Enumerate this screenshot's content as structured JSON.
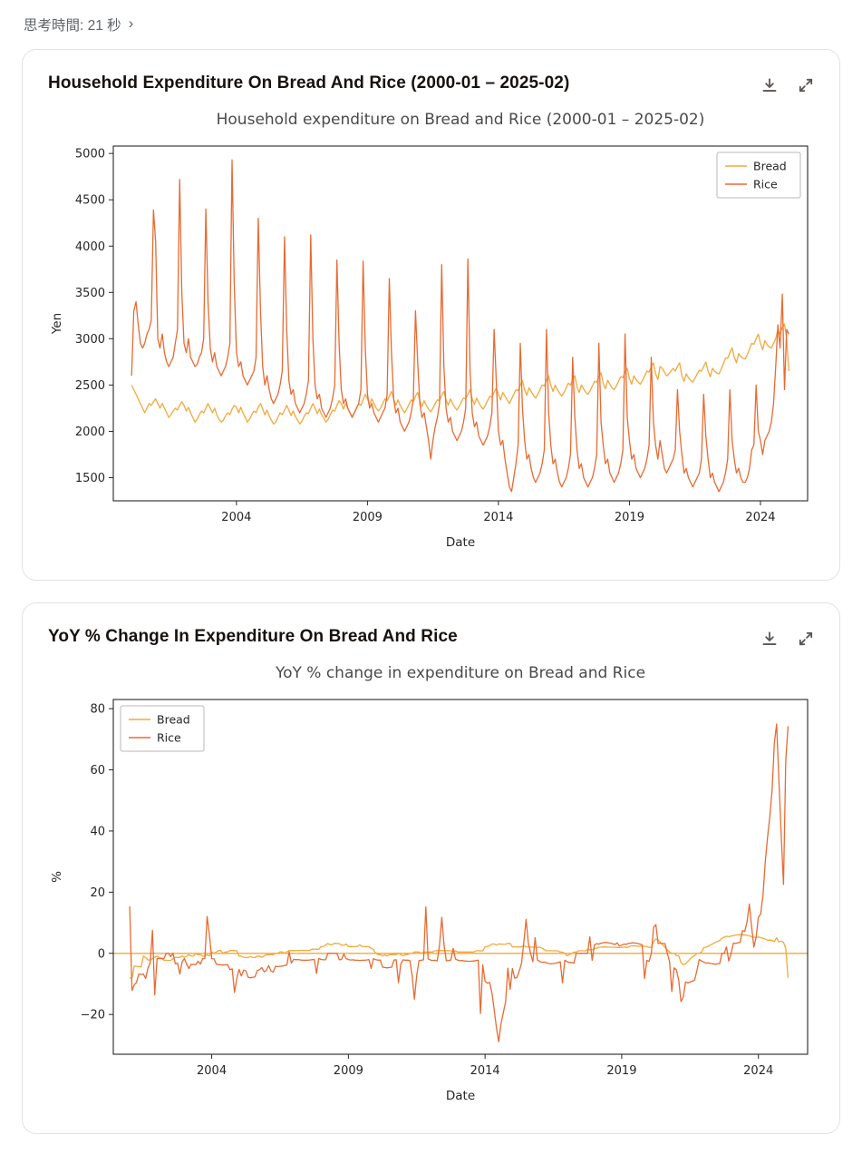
{
  "header": {
    "thinking_label": "思考時間: 21 秒",
    "chevron": "›"
  },
  "cards": [
    {
      "title": "Household Expenditure On Bread And Rice (2000-01 – 2025-02)",
      "actions": {
        "download": "download",
        "expand": "expand"
      }
    },
    {
      "title": "YoY % Change In Expenditure On Bread And Rice",
      "actions": {
        "download": "download",
        "expand": "expand"
      }
    }
  ],
  "colors": {
    "bread": "#F2A93B",
    "rice": "#E86A32",
    "plot_title": "#4a4a4a",
    "axis": "#262626"
  },
  "chart_data": [
    {
      "type": "line",
      "title": "Household expenditure on Bread and Rice (2000-01 – 2025-02)",
      "xlabel": "Date",
      "ylabel": "Yen",
      "x_start_year": 2000,
      "x_start_month": 1,
      "xlim": [
        1999.3,
        2025.8
      ],
      "ylim": [
        1250,
        5080
      ],
      "y_ticks": [
        1500,
        2000,
        2500,
        3000,
        3500,
        4000,
        4500,
        5000
      ],
      "x_ticks": [
        2004,
        2009,
        2014,
        2019,
        2024
      ],
      "grid": false,
      "legend": {
        "position": "upper right",
        "entries": [
          "Bread",
          "Rice"
        ]
      },
      "series": [
        {
          "name": "Bread",
          "color": "#F2A93B",
          "values": [
            2500,
            2450,
            2400,
            2350,
            2300,
            2250,
            2200,
            2250,
            2300,
            2280,
            2320,
            2350,
            2300,
            2250,
            2300,
            2250,
            2200,
            2150,
            2180,
            2220,
            2250,
            2230,
            2280,
            2320,
            2280,
            2220,
            2260,
            2200,
            2150,
            2100,
            2130,
            2180,
            2220,
            2200,
            2250,
            2300,
            2250,
            2200,
            2250,
            2180,
            2130,
            2100,
            2120,
            2170,
            2200,
            2180,
            2240,
            2280,
            2260,
            2200,
            2260,
            2200,
            2150,
            2100,
            2130,
            2180,
            2220,
            2200,
            2260,
            2300,
            2240,
            2180,
            2230,
            2170,
            2120,
            2080,
            2100,
            2150,
            2200,
            2180,
            2230,
            2280,
            2230,
            2170,
            2220,
            2160,
            2120,
            2080,
            2110,
            2160,
            2200,
            2190,
            2250,
            2300,
            2250,
            2190,
            2240,
            2180,
            2140,
            2100,
            2130,
            2180,
            2230,
            2220,
            2280,
            2330,
            2300,
            2240,
            2300,
            2250,
            2200,
            2160,
            2200,
            2250,
            2300,
            2280,
            2340,
            2400,
            2350,
            2290,
            2350,
            2300,
            2250,
            2220,
            2250,
            2300,
            2350,
            2330,
            2380,
            2430,
            2350,
            2280,
            2340,
            2280,
            2240,
            2200,
            2240,
            2290,
            2340,
            2320,
            2380,
            2420,
            2330,
            2270,
            2330,
            2280,
            2240,
            2210,
            2250,
            2300,
            2340,
            2330,
            2390,
            2430,
            2340,
            2280,
            2350,
            2300,
            2260,
            2230,
            2270,
            2320,
            2360,
            2350,
            2400,
            2450,
            2350,
            2290,
            2360,
            2310,
            2270,
            2240,
            2280,
            2330,
            2380,
            2370,
            2420,
            2470,
            2400,
            2340,
            2420,
            2380,
            2340,
            2300,
            2350,
            2400,
            2450,
            2440,
            2500,
            2550,
            2450,
            2390,
            2470,
            2430,
            2390,
            2360,
            2400,
            2450,
            2500,
            2490,
            2550,
            2600,
            2500,
            2430,
            2500,
            2450,
            2410,
            2380,
            2420,
            2470,
            2520,
            2500,
            2560,
            2600,
            2480,
            2420,
            2500,
            2460,
            2420,
            2400,
            2440,
            2490,
            2540,
            2530,
            2590,
            2630,
            2520,
            2460,
            2550,
            2510,
            2470,
            2450,
            2490,
            2540,
            2590,
            2580,
            2640,
            2680,
            2570,
            2510,
            2600,
            2560,
            2530,
            2510,
            2550,
            2600,
            2650,
            2640,
            2700,
            2740,
            2620,
            2560,
            2700,
            2680,
            2640,
            2600,
            2620,
            2650,
            2680,
            2650,
            2700,
            2740,
            2600,
            2540,
            2620,
            2580,
            2550,
            2530,
            2570,
            2620,
            2660,
            2650,
            2700,
            2750,
            2650,
            2590,
            2680,
            2650,
            2630,
            2620,
            2670,
            2730,
            2790,
            2790,
            2850,
            2900,
            2800,
            2740,
            2840,
            2810,
            2790,
            2780,
            2830,
            2890,
            2950,
            2940,
            3000,
            3050,
            2950,
            2880,
            2980,
            2940,
            2910,
            2900,
            2950,
            3000,
            3100,
            3050,
            3120,
            3160,
            3000,
            2650
          ]
        },
        {
          "name": "Rice",
          "color": "#E86A32",
          "values": [
            2600,
            3300,
            3400,
            3150,
            2950,
            2900,
            2950,
            3050,
            3100,
            3200,
            4390,
            4050,
            3000,
            2900,
            3050,
            2850,
            2750,
            2700,
            2750,
            2800,
            2950,
            3100,
            4720,
            3500,
            2950,
            2850,
            3000,
            2800,
            2750,
            2700,
            2720,
            2800,
            2850,
            3000,
            4400,
            3400,
            2900,
            2750,
            2850,
            2700,
            2650,
            2600,
            2650,
            2700,
            2800,
            2950,
            4930,
            3600,
            2850,
            2700,
            2750,
            2600,
            2550,
            2500,
            2550,
            2600,
            2650,
            2800,
            4300,
            3300,
            2700,
            2500,
            2600,
            2450,
            2350,
            2300,
            2350,
            2400,
            2500,
            2650,
            4100,
            3100,
            2550,
            2400,
            2450,
            2300,
            2250,
            2200,
            2250,
            2300,
            2400,
            2550,
            4120,
            3000,
            2500,
            2350,
            2400,
            2250,
            2200,
            2150,
            2200,
            2250,
            2350,
            2500,
            3850,
            2950,
            2450,
            2300,
            2350,
            2250,
            2200,
            2150,
            2200,
            2250,
            2300,
            2450,
            3840,
            2900,
            2400,
            2250,
            2300,
            2200,
            2150,
            2100,
            2150,
            2200,
            2250,
            2400,
            3650,
            2850,
            2350,
            2200,
            2250,
            2100,
            2050,
            2000,
            2050,
            2100,
            2200,
            2350,
            3300,
            2750,
            2300,
            2150,
            2200,
            2050,
            1900,
            1700,
            1900,
            2050,
            2150,
            2300,
            3800,
            2700,
            2250,
            2100,
            2150,
            2000,
            1950,
            1900,
            1950,
            2000,
            2100,
            2250,
            3860,
            2650,
            2200,
            2050,
            2100,
            1950,
            1900,
            1850,
            1900,
            1950,
            2050,
            2200,
            3100,
            2550,
            2000,
            1850,
            1900,
            1700,
            1550,
            1400,
            1350,
            1500,
            1650,
            1850,
            2950,
            2250,
            1900,
            1700,
            1750,
            1600,
            1500,
            1450,
            1500,
            1550,
            1650,
            1800,
            3100,
            2200,
            1850,
            1650,
            1700,
            1550,
            1450,
            1400,
            1450,
            1500,
            1600,
            1750,
            2800,
            2150,
            1800,
            1600,
            1650,
            1500,
            1450,
            1400,
            1450,
            1500,
            1600,
            1750,
            2950,
            2100,
            1850,
            1650,
            1700,
            1550,
            1500,
            1450,
            1500,
            1550,
            1650,
            1800,
            3050,
            2150,
            1900,
            1700,
            1750,
            1600,
            1550,
            1500,
            1550,
            1600,
            1700,
            1850,
            2800,
            2100,
            1850,
            1700,
            1900,
            1750,
            1600,
            1550,
            1600,
            1650,
            1700,
            1800,
            2450,
            2000,
            1750,
            1550,
            1600,
            1500,
            1450,
            1400,
            1450,
            1500,
            1550,
            1700,
            2400,
            1950,
            1700,
            1500,
            1550,
            1450,
            1400,
            1350,
            1400,
            1450,
            1550,
            1700,
            2450,
            1900,
            1700,
            1550,
            1600,
            1500,
            1450,
            1450,
            1500,
            1600,
            1800,
            1850,
            2500,
            2000,
            1900,
            1750,
            1900,
            1950,
            2000,
            2100,
            2300,
            2700,
            3150,
            2900,
            3480,
            2450,
            3100,
            3050
          ]
        }
      ]
    },
    {
      "type": "line",
      "title": "YoY % change in expenditure on Bread and Rice",
      "xlabel": "Date",
      "ylabel": "%",
      "derived_from_chart": 0,
      "transform": "yoy_percent",
      "xlim": [
        2000.4,
        2025.8
      ],
      "ylim": [
        -33,
        83
      ],
      "y_ticks": [
        -20,
        0,
        20,
        40,
        60,
        80
      ],
      "x_ticks": [
        2004,
        2009,
        2014,
        2019,
        2024
      ],
      "grid": false,
      "zero_line": true,
      "zero_line_color": "#F2A93B",
      "legend": {
        "position": "upper left",
        "entries": [
          "Bread",
          "Rice"
        ]
      },
      "series_style": [
        {
          "name": "Bread",
          "color": "#F2A93B"
        },
        {
          "name": "Rice",
          "color": "#E86A32"
        }
      ]
    }
  ]
}
